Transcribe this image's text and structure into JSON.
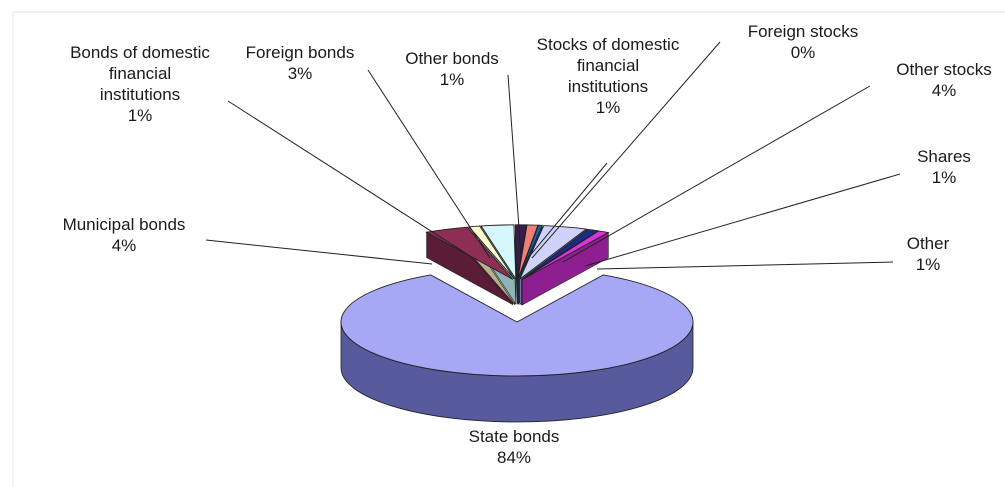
{
  "chart_data": {
    "type": "pie",
    "three_d": true,
    "exploded": true,
    "title": "",
    "legend": "none",
    "slices": [
      {
        "name": "State bonds",
        "value": 84,
        "label": "84%",
        "color": "#a7a8f5",
        "side_color": "#585a9e"
      },
      {
        "name": "Municipal bonds",
        "value": 4,
        "label": "4%",
        "color": "#8e2e54",
        "side_color": "#5a1c36"
      },
      {
        "name": "Bonds of domestic financial institutions",
        "value": 1,
        "label": "1%",
        "color": "#fdfccd",
        "side_color": "#b5b38e"
      },
      {
        "name": "Foreign bonds",
        "value": 3,
        "label": "3%",
        "color": "#d6f7fb",
        "side_color": "#8fb3b7"
      },
      {
        "name": "Other bonds",
        "value": 1,
        "label": "1%",
        "color": "#3b1c52",
        "side_color": "#26113a"
      },
      {
        "name": "Stocks of domestic financial institutions",
        "value": 1,
        "label": "1%",
        "color": "#f07f76",
        "side_color": "#a65750"
      },
      {
        "name": "Foreign stocks",
        "value": 0,
        "label": "0%",
        "color": "#1a63b8",
        "side_color": "#0f3f78"
      },
      {
        "name": "Other stocks",
        "value": 4,
        "label": "4%",
        "color": "#d0d2fb",
        "side_color": "#8b8dc4"
      },
      {
        "name": "Shares",
        "value": 1,
        "label": "1%",
        "color": "#1c2a88",
        "side_color": "#10195a"
      },
      {
        "name": "Other",
        "value": 1,
        "label": "1%",
        "color": "#d636d8",
        "side_color": "#8e1f90"
      }
    ],
    "slice_labels": [
      {
        "lines": [
          "State bonds",
          "84%"
        ]
      },
      {
        "lines": [
          "Municipal bonds",
          "4%"
        ]
      },
      {
        "lines": [
          "Bonds of domestic",
          "financial",
          "institutions",
          "1%"
        ]
      },
      {
        "lines": [
          "Foreign bonds",
          "3%"
        ]
      },
      {
        "lines": [
          "Other bonds",
          "1%"
        ]
      },
      {
        "lines": [
          "Stocks of domestic",
          "financial",
          "institutions",
          "1%"
        ]
      },
      {
        "lines": [
          "Foreign stocks",
          "0%"
        ]
      },
      {
        "lines": [
          "Other stocks",
          "4%"
        ]
      },
      {
        "lines": [
          "Shares",
          "1%"
        ]
      },
      {
        "lines": [
          "Other",
          "1%"
        ]
      }
    ]
  }
}
